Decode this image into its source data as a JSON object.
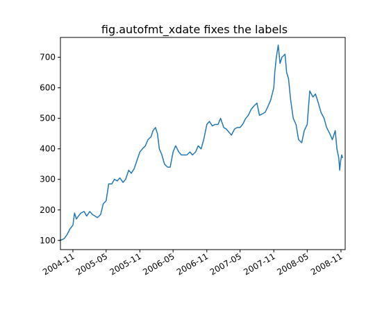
{
  "chart_data": {
    "type": "line",
    "title": "fig.autofmt_xdate fixes the labels",
    "xlabel": "",
    "ylabel": "",
    "x_is_date": true,
    "xlim": [
      "2004-08-25",
      "2008-11-24"
    ],
    "ylim": [
      70,
      765
    ],
    "grid": false,
    "line_color": "#1f77b4",
    "x_ticks": [
      {
        "value": "2004-11-01",
        "label": "2004-11"
      },
      {
        "value": "2005-05-01",
        "label": "2005-05"
      },
      {
        "value": "2005-11-01",
        "label": "2005-11"
      },
      {
        "value": "2006-05-01",
        "label": "2006-05"
      },
      {
        "value": "2006-11-01",
        "label": "2006-11"
      },
      {
        "value": "2007-05-01",
        "label": "2007-05"
      },
      {
        "value": "2007-11-01",
        "label": "2007-11"
      },
      {
        "value": "2008-05-01",
        "label": "2008-05"
      },
      {
        "value": "2008-11-01",
        "label": "2008-11"
      }
    ],
    "y_ticks": [
      {
        "value": 100,
        "label": "100"
      },
      {
        "value": 200,
        "label": "200"
      },
      {
        "value": 300,
        "label": "300"
      },
      {
        "value": 400,
        "label": "400"
      },
      {
        "value": 500,
        "label": "500"
      },
      {
        "value": 600,
        "label": "600"
      },
      {
        "value": 700,
        "label": "700"
      }
    ],
    "series": [
      {
        "x": [
          "2004-08-19",
          "2004-09-01",
          "2004-09-15",
          "2004-10-01",
          "2004-10-15",
          "2004-11-01",
          "2004-11-10",
          "2004-11-20",
          "2004-12-01",
          "2004-12-15",
          "2005-01-01",
          "2005-01-15",
          "2005-02-01",
          "2005-02-15",
          "2005-03-01",
          "2005-03-15",
          "2005-04-01",
          "2005-04-15",
          "2005-05-01",
          "2005-05-15",
          "2005-06-01",
          "2005-06-15",
          "2005-07-01",
          "2005-07-15",
          "2005-08-01",
          "2005-08-15",
          "2005-09-01",
          "2005-09-15",
          "2005-10-01",
          "2005-10-15",
          "2005-11-01",
          "2005-11-15",
          "2005-12-01",
          "2005-12-15",
          "2006-01-01",
          "2006-01-12",
          "2006-01-25",
          "2006-02-05",
          "2006-02-15",
          "2006-03-01",
          "2006-03-15",
          "2006-04-01",
          "2006-04-15",
          "2006-05-01",
          "2006-05-15",
          "2006-06-01",
          "2006-06-15",
          "2006-07-01",
          "2006-07-15",
          "2006-08-01",
          "2006-08-15",
          "2006-09-01",
          "2006-09-15",
          "2006-10-01",
          "2006-10-15",
          "2006-11-01",
          "2006-11-15",
          "2006-12-01",
          "2006-12-15",
          "2007-01-01",
          "2007-01-15",
          "2007-02-01",
          "2007-02-15",
          "2007-03-01",
          "2007-03-15",
          "2007-04-01",
          "2007-04-15",
          "2007-05-01",
          "2007-05-15",
          "2007-06-01",
          "2007-06-15",
          "2007-07-01",
          "2007-07-15",
          "2007-08-01",
          "2007-08-15",
          "2007-09-01",
          "2007-09-15",
          "2007-10-01",
          "2007-10-15",
          "2007-11-01",
          "2007-11-06",
          "2007-11-15",
          "2007-11-25",
          "2007-12-05",
          "2007-12-15",
          "2008-01-01",
          "2008-01-10",
          "2008-01-20",
          "2008-02-01",
          "2008-02-15",
          "2008-03-01",
          "2008-03-15",
          "2008-04-01",
          "2008-04-15",
          "2008-05-01",
          "2008-05-15",
          "2008-06-01",
          "2008-06-15",
          "2008-07-01",
          "2008-07-15",
          "2008-08-01",
          "2008-08-15",
          "2008-09-01",
          "2008-09-15",
          "2008-10-01",
          "2008-10-10",
          "2008-10-20",
          "2008-10-25",
          "2008-10-30",
          "2008-11-05",
          "2008-11-10"
        ],
        "y": [
          100,
          102,
          106,
          120,
          137,
          150,
          190,
          170,
          180,
          190,
          195,
          180,
          195,
          185,
          180,
          175,
          185,
          220,
          230,
          285,
          285,
          300,
          295,
          305,
          290,
          300,
          330,
          320,
          335,
          360,
          390,
          400,
          410,
          430,
          440,
          460,
          470,
          450,
          400,
          380,
          350,
          340,
          340,
          390,
          410,
          390,
          380,
          380,
          380,
          390,
          380,
          390,
          410,
          400,
          430,
          480,
          490,
          475,
          480,
          480,
          500,
          470,
          465,
          455,
          445,
          465,
          470,
          470,
          480,
          500,
          510,
          530,
          540,
          550,
          510,
          515,
          520,
          540,
          560,
          600,
          650,
          700,
          740,
          680,
          700,
          710,
          650,
          630,
          560,
          500,
          480,
          430,
          420,
          460,
          480,
          590,
          570,
          580,
          550,
          520,
          500,
          470,
          450,
          430,
          460,
          400,
          370,
          330,
          360,
          380,
          370
        ]
      }
    ]
  }
}
